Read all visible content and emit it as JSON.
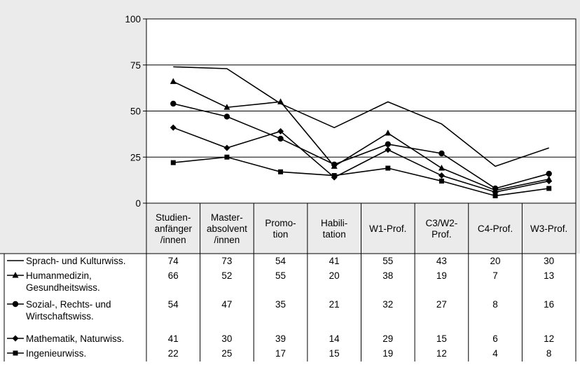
{
  "chart_data": {
    "type": "line",
    "categories": [
      [
        "Studien-",
        "anfänger",
        "/innen"
      ],
      [
        "Master-",
        "absolvent",
        "/innen"
      ],
      [
        "Promo-",
        "tion"
      ],
      [
        "Habili-",
        "tation"
      ],
      [
        "W1-Prof."
      ],
      [
        "C3/W2-",
        "Prof."
      ],
      [
        "C4-Prof."
      ],
      [
        "W3-Prof."
      ]
    ],
    "ylim": [
      0,
      100
    ],
    "yticks": [
      0,
      25,
      50,
      75,
      100
    ],
    "grid": true,
    "legend": "data-table-below",
    "series": [
      {
        "name": [
          "Sprach- und Kulturwiss."
        ],
        "marker": "none",
        "values": [
          74,
          73,
          54,
          41,
          55,
          43,
          20,
          30
        ]
      },
      {
        "name": [
          "Humanmedizin,",
          "Gesundheitswiss."
        ],
        "marker": "triangle",
        "values": [
          66,
          52,
          55,
          20,
          38,
          19,
          7,
          13
        ]
      },
      {
        "name": [
          "Sozial-, Rechts- und",
          "Wirtschaftswiss."
        ],
        "marker": "circle",
        "values": [
          54,
          47,
          35,
          21,
          32,
          27,
          8,
          16
        ]
      },
      {
        "name": [
          "Mathematik, Naturwiss."
        ],
        "marker": "diamond",
        "values": [
          41,
          30,
          39,
          14,
          29,
          15,
          6,
          12
        ]
      },
      {
        "name": [
          "Ingenieurwiss."
        ],
        "marker": "square",
        "values": [
          22,
          25,
          17,
          15,
          19,
          12,
          4,
          8
        ]
      }
    ],
    "colors": {
      "plot_bg": "#ffffff",
      "outer_bg": "#ebebeb",
      "line": "#000000"
    }
  }
}
